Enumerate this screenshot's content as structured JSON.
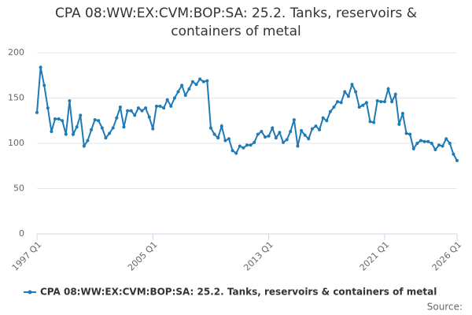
{
  "chart_data": {
    "type": "line",
    "title": "CPA 08:WW:EX:CVM:BOP:SA: 25.2. Tanks, reservoirs & containers of metal",
    "source": "Source:",
    "categories": [
      "1997 Q1",
      null,
      null,
      null,
      null,
      null,
      null,
      null,
      null,
      null,
      null,
      null,
      null,
      null,
      null,
      null,
      null,
      null,
      null,
      null,
      null,
      null,
      null,
      null,
      null,
      null,
      null,
      null,
      null,
      null,
      null,
      null,
      "2005 Q1",
      null,
      null,
      null,
      null,
      null,
      null,
      null,
      null,
      null,
      null,
      null,
      null,
      null,
      null,
      null,
      null,
      null,
      null,
      null,
      null,
      null,
      null,
      null,
      null,
      null,
      null,
      null,
      null,
      null,
      null,
      null,
      "2013 Q1",
      null,
      null,
      null,
      null,
      null,
      null,
      null,
      null,
      null,
      null,
      null,
      null,
      null,
      null,
      null,
      null,
      null,
      null,
      null,
      null,
      null,
      null,
      null,
      null,
      null,
      null,
      null,
      null,
      null,
      null,
      null,
      "2021 Q1",
      null,
      null,
      null,
      null,
      null,
      null,
      null,
      null,
      null,
      null,
      null,
      null,
      null,
      null,
      null,
      null,
      null,
      null,
      null,
      "2026 Q1"
    ],
    "series": [
      {
        "name": "CPA 08:WW:EX:CVM:BOP:SA: 25.2. Tanks, reservoirs & containers of metal",
        "color": "#1f7ab5",
        "values": [
          134,
          184,
          164,
          139,
          113,
          127,
          127,
          125,
          110,
          147,
          110,
          118,
          131,
          97,
          103,
          115,
          126,
          125,
          117,
          106,
          111,
          117,
          128,
          140,
          118,
          136,
          136,
          131,
          139,
          136,
          139,
          129,
          116,
          141,
          141,
          139,
          148,
          141,
          150,
          157,
          164,
          153,
          160,
          168,
          165,
          171,
          168,
          169,
          117,
          110,
          106,
          119,
          103,
          105,
          92,
          89,
          97,
          95,
          98,
          98,
          101,
          110,
          113,
          107,
          108,
          117,
          106,
          112,
          101,
          104,
          113,
          126,
          97,
          114,
          109,
          105,
          116,
          119,
          115,
          128,
          125,
          135,
          140,
          146,
          145,
          157,
          152,
          165,
          157,
          140,
          142,
          145,
          124,
          123,
          147,
          146,
          146,
          160,
          146,
          154,
          121,
          133,
          111,
          110,
          94,
          100,
          103,
          102,
          102,
          100,
          93,
          98,
          97,
          105,
          100,
          88,
          81
        ]
      }
    ],
    "ylim": [
      0,
      200
    ],
    "yticks": [
      0,
      50,
      100,
      150,
      200
    ],
    "grid": true,
    "legend": "bottom"
  }
}
